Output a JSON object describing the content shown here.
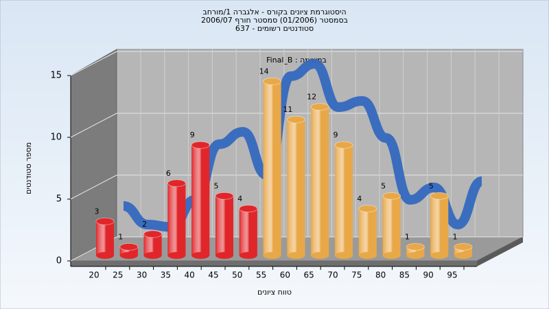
{
  "chart_data": {
    "type": "bar",
    "title": [
      "היסטוגרמת ציונים בקורס - אלגברה 1/מורחב",
      "בסמסטר (01/2006) סמסטר חורף 2006/07",
      "סטודנטים רשומים - 637"
    ],
    "annotation": "במשימה : Final_B",
    "x_label": "טווח ציונים",
    "y_label": "מספר סטודנטים",
    "categories": [
      "20",
      "25",
      "30",
      "35",
      "40",
      "45",
      "50",
      "55",
      "60",
      "65",
      "70",
      "75",
      "80",
      "85",
      "90",
      "95"
    ],
    "values": [
      3,
      1,
      2,
      6,
      9,
      5,
      4,
      14,
      11,
      12,
      9,
      4,
      5,
      1,
      5,
      1
    ],
    "colors": [
      "#e0262a",
      "#e0262a",
      "#e0262a",
      "#e0262a",
      "#e0262a",
      "#e0262a",
      "#e0262a",
      "#e8a848",
      "#e8a848",
      "#e8a848",
      "#e8a848",
      "#e8a848",
      "#e8a848",
      "#e8a848",
      "#e8a848",
      "#e8a848"
    ],
    "trend_values": [
      2.5,
      1,
      0.8,
      3,
      7.5,
      8.5,
      5,
      13,
      14,
      10.5,
      11,
      8,
      3,
      4,
      1,
      4.5
    ],
    "trend_color": "#3569c0",
    "ylim": [
      0,
      15
    ],
    "yticks": [
      0,
      5,
      10,
      15
    ],
    "grid": true
  }
}
